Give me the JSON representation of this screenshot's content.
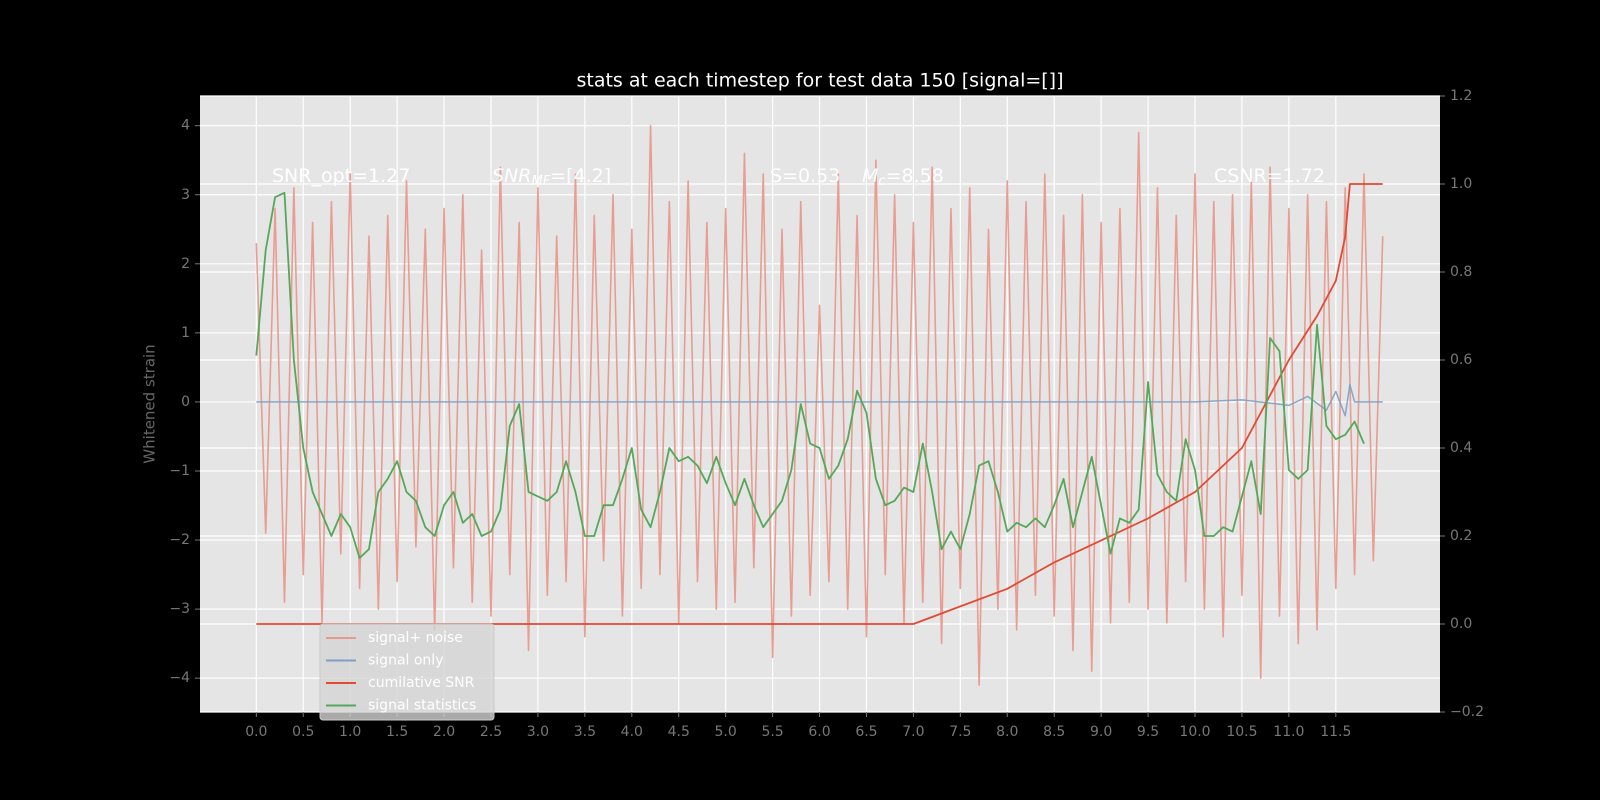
{
  "chart_data": {
    "type": "line",
    "title": "stats at each timestep for test data 150 [signal=[]]",
    "ylabel": "Whitened strain",
    "xlim": [
      -0.6,
      12.61
    ],
    "ylim": [
      -4.49,
      4.43
    ],
    "y2lim": [
      -0.2,
      1.2
    ],
    "xticks": [
      {
        "value": 0,
        "label": "0.0"
      },
      0.5,
      {
        "value": 1,
        "label": "1.0"
      },
      1.5,
      {
        "value": 2,
        "label": "2.0"
      },
      2.5,
      {
        "value": 3,
        "label": "3.0"
      },
      3.5,
      {
        "value": 4,
        "label": "4.0"
      },
      4.5,
      {
        "value": 5,
        "label": "5.0"
      },
      5.5,
      {
        "value": 6,
        "label": "6.0"
      },
      6.5,
      {
        "value": 7,
        "label": "7.0"
      },
      7.5,
      {
        "value": 8,
        "label": "8.0"
      },
      8.5,
      {
        "value": 9,
        "label": "9.0"
      },
      9.5,
      {
        "value": 10,
        "label": "10.0"
      },
      10.5,
      {
        "value": 11,
        "label": "11.0"
      },
      11.5
    ],
    "yticks": [
      {
        "value": -4,
        "label": "−4"
      },
      {
        "value": -3,
        "label": "−3"
      },
      {
        "value": -2,
        "label": "−2"
      },
      {
        "value": -1,
        "label": "−1"
      },
      0,
      1,
      2,
      3,
      4
    ],
    "y2ticks": [
      {
        "value": -0.2,
        "label": "−0.2"
      },
      {
        "value": 0,
        "label": "0.0"
      },
      0.2,
      0.4,
      0.6,
      0.8,
      {
        "value": 1,
        "label": "1.0"
      },
      1.2
    ],
    "grid": true,
    "annotations": [
      {
        "text": "SNR_opt=1.27"
      },
      {
        "text": "SNR",
        "sub": "MF",
        "tail": "=[4.2]"
      },
      {
        "text": "S=0.53"
      },
      {
        "text": "M",
        "sub": "c",
        "tail": "=8.58"
      },
      {
        "text": "CSNR=1.72"
      }
    ],
    "series": [
      {
        "name": "signal+ noise",
        "color": "#e8998d",
        "x": [
          0,
          0.1,
          0.2,
          0.3,
          0.4,
          0.5,
          0.6,
          0.7,
          0.8,
          0.9,
          1,
          1.1,
          1.2,
          1.3,
          1.4,
          1.5,
          1.6,
          1.7,
          1.8,
          1.9,
          2,
          2.1,
          2.2,
          2.3,
          2.4,
          2.5,
          2.6,
          2.7,
          2.8,
          2.9,
          3,
          3.1,
          3.2,
          3.3,
          3.4,
          3.5,
          3.6,
          3.7,
          3.8,
          3.9,
          4,
          4.1,
          4.2,
          4.3,
          4.4,
          4.5,
          4.6,
          4.7,
          4.8,
          4.9,
          5,
          5.1,
          5.2,
          5.3,
          5.4,
          5.5,
          5.6,
          5.7,
          5.8,
          5.9,
          6,
          6.1,
          6.2,
          6.3,
          6.4,
          6.5,
          6.6,
          6.7,
          6.8,
          6.9,
          7,
          7.1,
          7.2,
          7.3,
          7.4,
          7.5,
          7.6,
          7.7,
          7.8,
          7.9,
          8,
          8.1,
          8.2,
          8.3,
          8.4,
          8.5,
          8.6,
          8.7,
          8.8,
          8.9,
          9,
          9.1,
          9.2,
          9.3,
          9.4,
          9.5,
          9.6,
          9.7,
          9.8,
          9.9,
          10,
          10.1,
          10.2,
          10.3,
          10.4,
          10.5,
          10.6,
          10.7,
          10.8,
          10.9,
          11,
          11.1,
          11.2,
          11.3,
          11.4,
          11.5,
          11.6,
          11.7,
          11.8,
          11.9,
          12
        ],
        "values": [
          2.3,
          -1.9,
          2.8,
          -2.9,
          3.1,
          -2.5,
          2.6,
          -3.2,
          2.9,
          -2.2,
          3.3,
          -2.7,
          2.4,
          -3.0,
          2.7,
          -2.6,
          3.2,
          -2.1,
          2.5,
          -3.3,
          2.8,
          -2.4,
          3.0,
          -2.9,
          2.2,
          -3.1,
          3.4,
          -2.5,
          2.6,
          -3.6,
          3.1,
          -2.8,
          2.4,
          -2.6,
          3.3,
          -3.4,
          2.7,
          -2.3,
          3.0,
          -3.1,
          2.5,
          -2.7,
          4.0,
          -2.5,
          2.9,
          -3.2,
          3.2,
          -2.6,
          2.6,
          -3.0,
          2.8,
          -2.9,
          3.6,
          -2.4,
          3.3,
          -3.7,
          2.5,
          -3.1,
          2.9,
          -2.8,
          1.4,
          -2.6,
          3.3,
          -3.0,
          2.7,
          -3.4,
          3.5,
          -2.5,
          3.0,
          -3.2,
          2.6,
          -2.9,
          3.4,
          -3.5,
          2.8,
          -2.7,
          3.1,
          -4.1,
          2.5,
          -3.0,
          3.2,
          -3.3,
          2.9,
          -2.8,
          3.3,
          -3.1,
          2.7,
          -3.6,
          3.0,
          -3.9,
          2.6,
          -3.2,
          2.8,
          -2.9,
          3.9,
          -3.0,
          3.1,
          -3.2,
          2.7,
          -2.6,
          3.3,
          -3.0,
          2.9,
          -3.4,
          3.0,
          -2.8,
          3.2,
          -4.0,
          3.4,
          -3.1,
          2.8,
          -3.5,
          3.0,
          -3.3,
          2.9,
          -2.7,
          3.1,
          -2.5,
          3.3,
          -2.3,
          2.4
        ]
      },
      {
        "name": "signal only",
        "color": "#7f9ec4",
        "x": [
          0,
          10,
          10.5,
          11,
          11.2,
          11.4,
          11.5,
          11.6,
          11.65,
          11.7,
          12
        ],
        "values": [
          0,
          0,
          0.03,
          -0.05,
          0.08,
          -0.12,
          0.15,
          -0.2,
          0.25,
          0,
          0
        ]
      },
      {
        "name": "cumilative SNR",
        "color": "#e24a33",
        "axis": "y2",
        "x": [
          0,
          7,
          7.5,
          8,
          8.5,
          9,
          9.5,
          10,
          10.5,
          11,
          11.3,
          11.5,
          11.6,
          11.65,
          12
        ],
        "values": [
          0,
          0,
          0.04,
          0.08,
          0.14,
          0.19,
          0.24,
          0.3,
          0.4,
          0.6,
          0.7,
          0.78,
          0.88,
          1.0,
          1.0
        ]
      },
      {
        "name": "signal statistics",
        "color": "#55a85a",
        "axis": "y2",
        "x": [
          0,
          0.1,
          0.2,
          0.3,
          0.4,
          0.5,
          0.6,
          0.7,
          0.8,
          0.9,
          1,
          1.1,
          1.2,
          1.3,
          1.4,
          1.5,
          1.6,
          1.7,
          1.8,
          1.9,
          2,
          2.1,
          2.2,
          2.3,
          2.4,
          2.5,
          2.6,
          2.7,
          2.8,
          2.9,
          3,
          3.1,
          3.2,
          3.3,
          3.4,
          3.5,
          3.6,
          3.7,
          3.8,
          3.9,
          4,
          4.1,
          4.2,
          4.3,
          4.4,
          4.5,
          4.6,
          4.7,
          4.8,
          4.9,
          5,
          5.1,
          5.2,
          5.3,
          5.4,
          5.5,
          5.6,
          5.7,
          5.8,
          5.9,
          6,
          6.1,
          6.2,
          6.3,
          6.4,
          6.5,
          6.6,
          6.7,
          6.8,
          6.9,
          7,
          7.1,
          7.2,
          7.3,
          7.4,
          7.5,
          7.6,
          7.7,
          7.8,
          7.9,
          8,
          8.1,
          8.2,
          8.3,
          8.4,
          8.5,
          8.6,
          8.7,
          8.8,
          8.9,
          9,
          9.1,
          9.2,
          9.3,
          9.4,
          9.5,
          9.6,
          9.7,
          9.8,
          9.9,
          10,
          10.1,
          10.2,
          10.3,
          10.4,
          10.5,
          10.6,
          10.7,
          10.8,
          10.9,
          11,
          11.1,
          11.2,
          11.3,
          11.4,
          11.5,
          11.6,
          11.7,
          11.8
        ],
        "values": [
          0.61,
          0.85,
          0.97,
          0.98,
          0.6,
          0.4,
          0.3,
          0.25,
          0.2,
          0.25,
          0.22,
          0.15,
          0.17,
          0.3,
          0.33,
          0.37,
          0.3,
          0.28,
          0.22,
          0.2,
          0.27,
          0.3,
          0.23,
          0.25,
          0.2,
          0.21,
          0.26,
          0.45,
          0.5,
          0.3,
          0.29,
          0.28,
          0.3,
          0.37,
          0.3,
          0.2,
          0.2,
          0.27,
          0.27,
          0.33,
          0.4,
          0.26,
          0.22,
          0.3,
          0.4,
          0.37,
          0.38,
          0.36,
          0.32,
          0.38,
          0.32,
          0.27,
          0.33,
          0.27,
          0.22,
          0.25,
          0.28,
          0.35,
          0.5,
          0.41,
          0.4,
          0.33,
          0.36,
          0.42,
          0.53,
          0.48,
          0.33,
          0.27,
          0.28,
          0.31,
          0.3,
          0.41,
          0.3,
          0.17,
          0.21,
          0.17,
          0.25,
          0.36,
          0.37,
          0.3,
          0.21,
          0.23,
          0.22,
          0.24,
          0.22,
          0.27,
          0.33,
          0.22,
          0.3,
          0.38,
          0.27,
          0.16,
          0.24,
          0.23,
          0.26,
          0.55,
          0.34,
          0.3,
          0.28,
          0.42,
          0.35,
          0.2,
          0.2,
          0.22,
          0.21,
          0.29,
          0.37,
          0.25,
          0.65,
          0.62,
          0.35,
          0.33,
          0.35,
          0.68,
          0.45,
          0.42,
          0.43,
          0.46,
          0.41
        ]
      }
    ]
  }
}
